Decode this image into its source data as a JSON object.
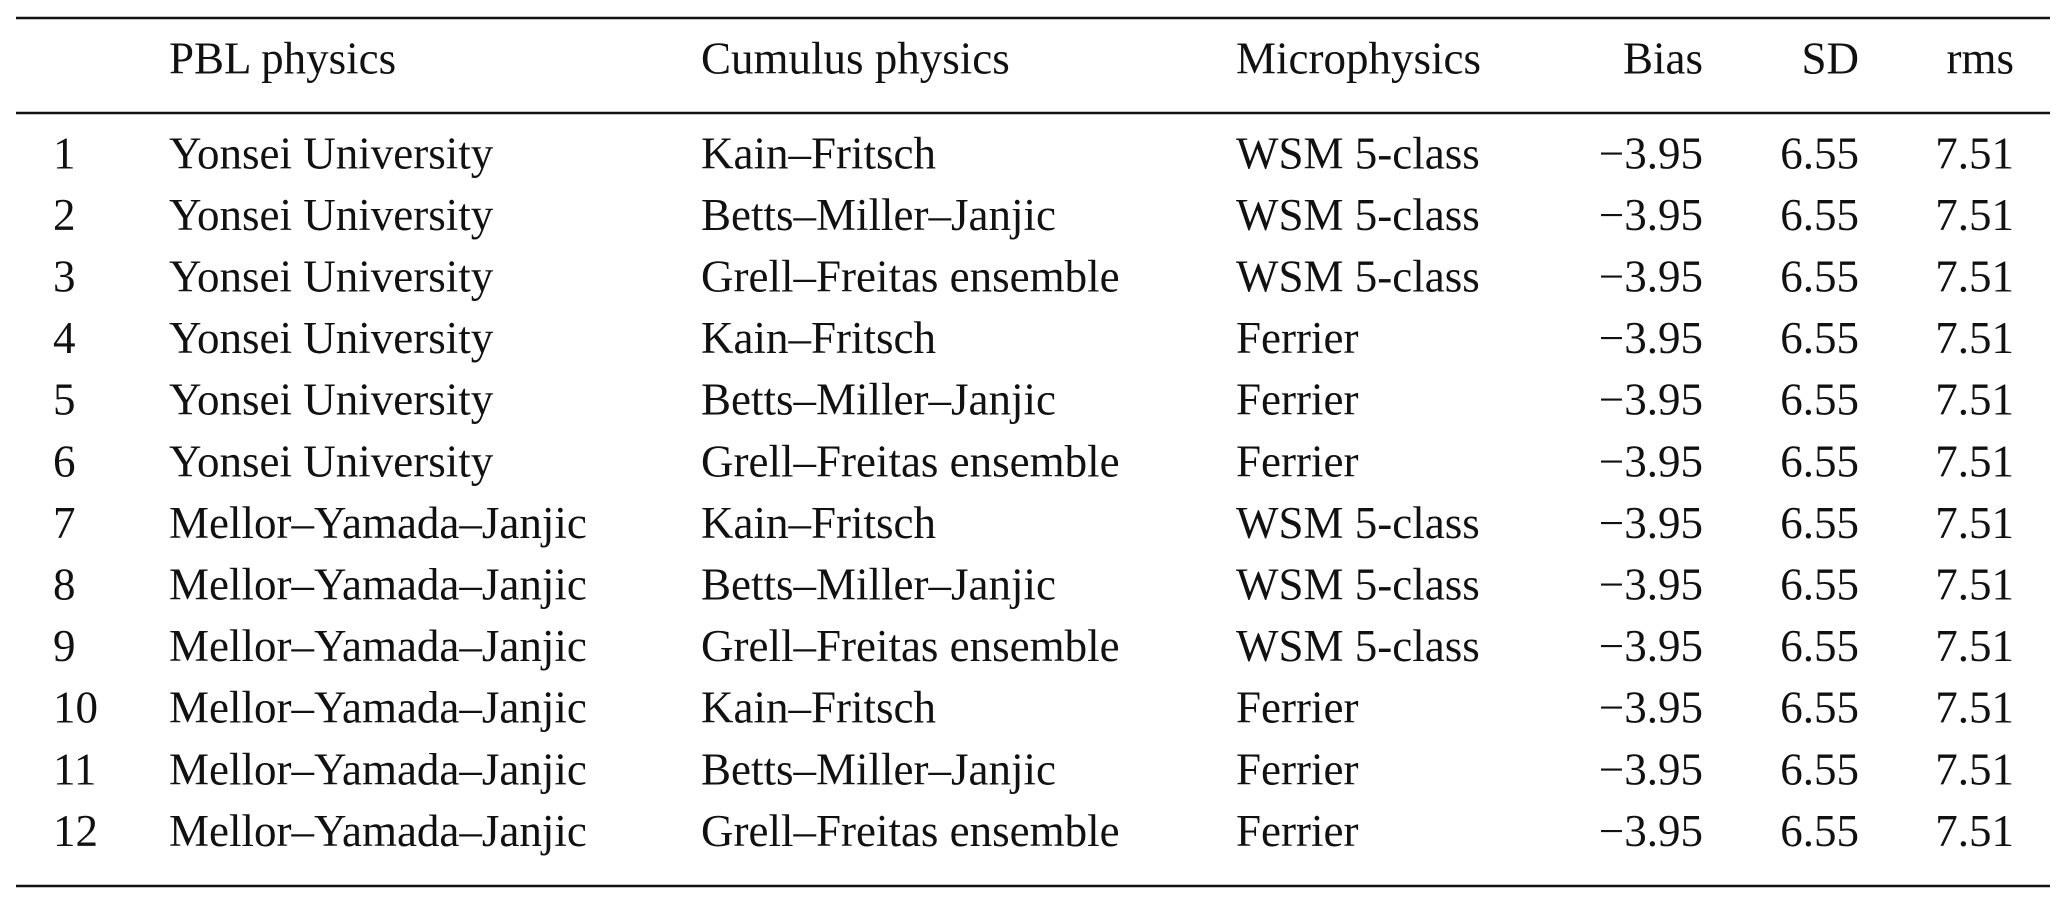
{
  "table": {
    "header": [
      "PBL physics",
      "Cumulus physics",
      "Microphysics",
      "Bias",
      "SD",
      "rms"
    ],
    "rows": [
      [
        "1",
        "Yonsei University",
        "Kain–Fritsch",
        "WSM 5-class",
        "−3.95",
        "6.55",
        "7.51"
      ],
      [
        "2",
        "Yonsei University",
        "Betts–Miller–Janjic",
        "WSM 5-class",
        "−3.95",
        "6.55",
        "7.51"
      ],
      [
        "3",
        "Yonsei University",
        "Grell–Freitas ensemble",
        "WSM 5-class",
        "−3.95",
        "6.55",
        "7.51"
      ],
      [
        "4",
        "Yonsei University",
        "Kain–Fritsch",
        "Ferrier",
        "−3.95",
        "6.55",
        "7.51"
      ],
      [
        "5",
        "Yonsei University",
        "Betts–Miller–Janjic",
        "Ferrier",
        "−3.95",
        "6.55",
        "7.51"
      ],
      [
        "6",
        "Yonsei University",
        "Grell–Freitas ensemble",
        "Ferrier",
        "−3.95",
        "6.55",
        "7.51"
      ],
      [
        "7",
        "Mellor–Yamada–Janjic",
        "Kain–Fritsch",
        "WSM 5-class",
        "−3.95",
        "6.55",
        "7.51"
      ],
      [
        "8",
        "Mellor–Yamada–Janjic",
        "Betts–Miller–Janjic",
        "WSM 5-class",
        "−3.95",
        "6.55",
        "7.51"
      ],
      [
        "9",
        "Mellor–Yamada–Janjic",
        "Grell–Freitas ensemble",
        "WSM 5-class",
        "−3.95",
        "6.55",
        "7.51"
      ],
      [
        "10",
        "Mellor–Yamada–Janjic",
        "Kain–Fritsch",
        "Ferrier",
        "−3.95",
        "6.55",
        "7.51"
      ],
      [
        "11",
        "Mellor–Yamada–Janjic",
        "Betts–Miller–Janjic",
        "Ferrier",
        "−3.95",
        "6.55",
        "7.51"
      ],
      [
        "12",
        "Mellor–Yamada–Janjic",
        "Grell–Freitas ensemble",
        "Ferrier",
        "−3.95",
        "6.55",
        "7.51"
      ]
    ]
  }
}
